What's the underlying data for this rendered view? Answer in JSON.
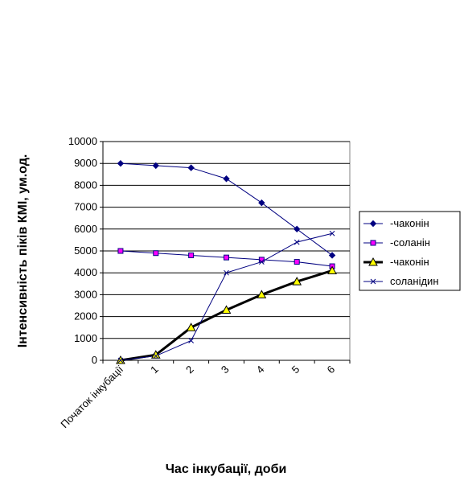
{
  "chart_data": {
    "type": "line",
    "title": "",
    "xlabel": "Час інкубації, доби",
    "ylabel": "Інтенсивність піків КМІ, ум.од.",
    "categories": [
      "Початок інкубації",
      "1",
      "2",
      "3",
      "4",
      "5",
      "6"
    ],
    "ylim": [
      0,
      10000
    ],
    "yticks": [
      0,
      1000,
      2000,
      3000,
      4000,
      5000,
      6000,
      7000,
      8000,
      9000,
      10000
    ],
    "grid": "horizontal",
    "legend_position": "right",
    "series": [
      {
        "name": "-чаконін",
        "marker": "diamond",
        "color": "#000080",
        "fill": "#000080",
        "values": [
          9000,
          8900,
          8800,
          8300,
          7200,
          6000,
          4800
        ]
      },
      {
        "name": "-соланін",
        "marker": "square",
        "color": "#000080",
        "fill": "#ff00ff",
        "values": [
          5000,
          4900,
          4800,
          4700,
          4600,
          4500,
          4300
        ]
      },
      {
        "name": "-чаконін",
        "marker": "triangle",
        "color": "#000000",
        "fill": "#ffff00",
        "bold": true,
        "values": [
          0,
          250,
          1500,
          2300,
          3000,
          3600,
          4100
        ]
      },
      {
        "name": "соланідин",
        "marker": "x",
        "color": "#000080",
        "fill": "none",
        "values": [
          0,
          200,
          900,
          4000,
          4500,
          5400,
          5800
        ]
      }
    ]
  }
}
